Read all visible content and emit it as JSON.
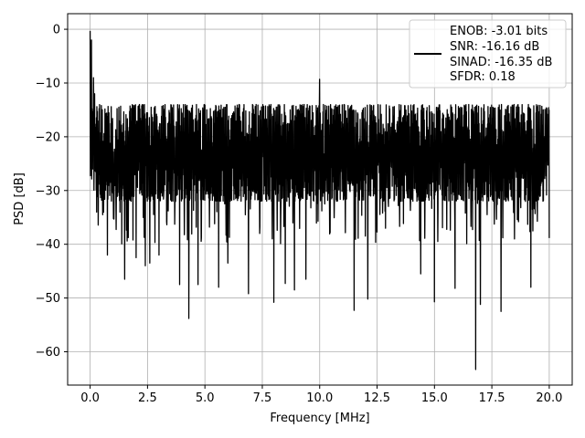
{
  "chart_data": {
    "type": "line",
    "title": "",
    "xlabel": "Frequency [MHz]",
    "ylabel": "PSD [dB]",
    "xlim": [
      -0.98,
      21.0
    ],
    "ylim": [
      -66.2,
      2.9
    ],
    "xticks": [
      0.0,
      2.5,
      5.0,
      7.5,
      10.0,
      12.5,
      15.0,
      17.5,
      20.0
    ],
    "xtick_labels": [
      "0.0",
      "2.5",
      "5.0",
      "7.5",
      "10.0",
      "12.5",
      "15.0",
      "17.5",
      "20.0"
    ],
    "yticks": [
      0,
      -10,
      -20,
      -30,
      -40,
      -50,
      -60
    ],
    "ytick_labels": [
      "0",
      "−10",
      "−20",
      "−30",
      "−40",
      "−50",
      "−60"
    ],
    "grid": true,
    "legend_position": "top-right",
    "legend_entries": [
      "ENOB: -3.01 bits",
      "SNR: -16.16 dB",
      "SINAD: -16.35 dB",
      "SFDR: 0.18"
    ],
    "series": [
      {
        "color": "#000000",
        "noise_band": [
          -32,
          -14
        ],
        "x_start": 0.0,
        "x_end": 20.0,
        "samples": 2048,
        "x": [
          0.0,
          0.03,
          0.06,
          0.1,
          0.15,
          0.2,
          0.3,
          0.55,
          0.75,
          1.5,
          2.0,
          2.4,
          2.6,
          3.0,
          3.2,
          3.9,
          4.3,
          4.7,
          5.6,
          6.0,
          6.9,
          8.0,
          8.5,
          8.9,
          9.4,
          10.0,
          11.5,
          12.1,
          14.4,
          15.0,
          15.9,
          16.8,
          17.0,
          17.9,
          19.2,
          19.9
        ],
        "y": [
          -0.3,
          -12,
          -2,
          -20,
          -9,
          -12,
          -27.5,
          -34.5,
          -42,
          -46.5,
          -42.5,
          -44,
          -43.5,
          -42,
          -31,
          -47.5,
          -53.8,
          -47.5,
          -48,
          -43.5,
          -49.2,
          -50.8,
          -47.3,
          -48.5,
          -46.5,
          -9.3,
          -52.3,
          -50.2,
          -45.5,
          -50.7,
          -48.2,
          -63.3,
          -51.2,
          -52.5,
          -48,
          -22
        ]
      }
    ]
  },
  "colors": {
    "line": "#000000",
    "grid": "#b0b0b0",
    "axes": "#000000",
    "legend_border": "#cccccc"
  }
}
